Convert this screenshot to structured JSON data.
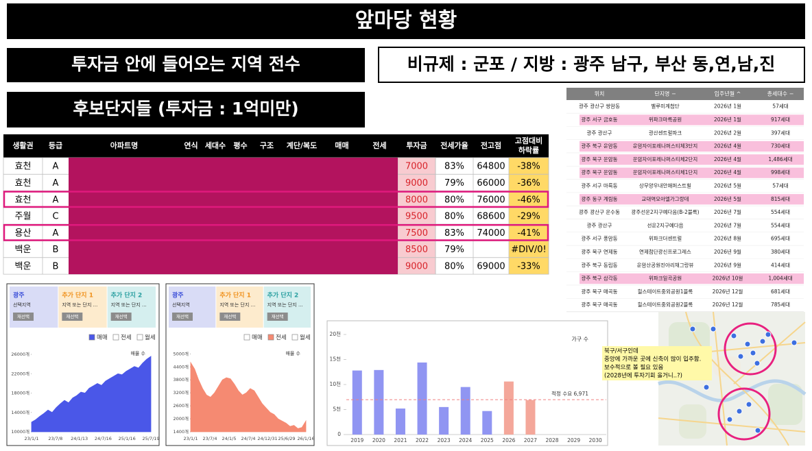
{
  "title": "앞마당 현황",
  "banner_left": "투자금 안에 들어오는 지역 전수",
  "banner_right": "비규제 : 군포 / 지방 : 광주 남구, 부산 동,연,남,진",
  "banner_candidates": "후보단지들 (투자금 : 1억미만)",
  "main_table": {
    "columns": [
      "생활권",
      "등급",
      "아파트명",
      "연식",
      "세대수",
      "평수",
      "구조",
      "계단/복도",
      "매매",
      "전세",
      "투자금",
      "전세가율",
      "전고점",
      [
        "고점대비",
        "하락률"
      ]
    ],
    "rows": [
      [
        "효천",
        "A",
        7000,
        "83%",
        64800,
        "-38%"
      ],
      [
        "효천",
        "A",
        9000,
        "79%",
        66000,
        "-36%"
      ],
      [
        "효천",
        "A",
        8000,
        "80%",
        76000,
        "-46%"
      ],
      [
        "주월",
        "C",
        9500,
        "80%",
        68600,
        "-29%"
      ],
      [
        "용산",
        "A",
        7500,
        "83%",
        74000,
        "-41%"
      ],
      [
        "백운",
        "B",
        8500,
        "79%",
        null,
        "#DIV/0!"
      ],
      [
        "백운",
        "B",
        9000,
        "80%",
        69000,
        "-33%"
      ]
    ],
    "outlined_rows": [
      2,
      4
    ]
  },
  "supply_table": {
    "columns": [
      "위치",
      "단지명 −",
      "입주년월 ^",
      "총세대수 −"
    ],
    "rows": [
      [
        "광주 광산구 쌍암동",
        "벨루미계첨단",
        "2026년 1월",
        "57세대"
      ],
      [
        "광주 서구 금호동",
        "위파크마륵공원",
        "2026년 1월",
        "917세대"
      ],
      [
        "광주 광산구",
        "광산센트럴파크",
        "2026년 2월",
        "397세대"
      ],
      [
        "광주 북구 운암동",
        "운암자이포레나퍼스티체3단지",
        "2026년 4월",
        "730세대"
      ],
      [
        "광주 북구 운암동",
        "운암자이포레나퍼스티체2단지",
        "2026년 4월",
        "1,486세대"
      ],
      [
        "광주 북구 운암동",
        "운암자이포레나퍼스티체1단지",
        "2026년 4월",
        "998세대"
      ],
      [
        "광주 서구 마륵동",
        "상무양우내안애퍼스트힐",
        "2026년 5월",
        "57세대"
      ],
      [
        "광주 동구 계림동",
        "교대역모아엘가그랑데",
        "2026년 5월",
        "815세대"
      ],
      [
        "광주 광산구 운수동",
        "광주선운2지구예다음(B-2블록)",
        "2026년 7월",
        "554세대"
      ],
      [
        "광주 광산구",
        "선운2지구예다음",
        "2026년 7월",
        "554세대"
      ],
      [
        "광주 서구 풍암동",
        "위파크더센트럴",
        "2026년 8월",
        "695세대"
      ],
      [
        "광주 북구 연제동",
        "연제첨단광신프로그레스",
        "2026년 9월",
        "380세대"
      ],
      [
        "광주 북구 동림동",
        "운암산공원진아리채그랑뷰",
        "2026년 9월",
        "414세대"
      ],
      [
        "광주 북구 삼각동",
        "위파크일곡공원",
        "2026년 10월",
        "1,004세대"
      ],
      [
        "광주 북구 매곡동",
        "힐스테이트중외공원1블록",
        "2026년 12월",
        "681세대"
      ],
      [
        "광주 북구 매곡동",
        "힐스테이트중외공원2블록",
        "2026년 12월",
        "785세대"
      ]
    ],
    "highlighted_rows": [
      1,
      3,
      4,
      5,
      7,
      13
    ]
  },
  "chart_data": [
    {
      "type": "area",
      "filters": [
        {
          "title": "광주",
          "subtitle": "선택지역",
          "button": "재선택",
          "color": "#3c4fd8",
          "background": "#d9dcf6"
        },
        {
          "title": "추가 단지 1",
          "subtitle": "지역 또는 단지 ...",
          "button": "재선택",
          "color": "#f0921e",
          "background": "#fdebcd"
        },
        {
          "title": "추가 단지 2",
          "subtitle": "지역 또는 단지 ...",
          "button": "재선택",
          "color": "#2a9fa0",
          "background": "#d5efef"
        }
      ],
      "legend": [
        "매매",
        "전세",
        "월세"
      ],
      "legend_checked": 0,
      "annotation": "매물 수",
      "x_labels": [
        "23/1/1",
        "23/7/8",
        "24/1/13",
        "24/7/16",
        "25/1/16",
        "25/7/19"
      ],
      "values": [
        12000,
        12500,
        13200,
        13800,
        14500,
        14000,
        15000,
        15800,
        16500,
        16000,
        17000,
        17500,
        18200,
        18000,
        19000,
        19500,
        20000,
        19600,
        20500,
        21000,
        21500,
        22000,
        21800,
        22500,
        23000,
        23500,
        23200,
        24200,
        25000,
        25600
      ],
      "ylim": [
        10000,
        27000
      ],
      "yticks": [
        {
          "value": 10000,
          "label": "10000개"
        },
        {
          "value": 14000,
          "label": "14000개"
        },
        {
          "value": 18000,
          "label": "18000개"
        },
        {
          "value": 22000,
          "label": "22000개"
        },
        {
          "value": 26000,
          "label": "26000개"
        }
      ],
      "color": "#4a57e8"
    },
    {
      "type": "area",
      "filters": [
        {
          "title": "광주",
          "subtitle": "선택지역",
          "button": "재선택",
          "color": "#3c4fd8",
          "background": "#d9dcf6"
        },
        {
          "title": "추가 단지 1",
          "subtitle": "지역 또는 단지 ...",
          "button": "재선택",
          "color": "#f0921e",
          "background": "#fdebcd"
        },
        {
          "title": "추가 단지 2",
          "subtitle": "지역 또는 단지 ...",
          "button": "재선택",
          "color": "#2a9fa0",
          "background": "#d5efef"
        }
      ],
      "legend": [
        "매매",
        "전세",
        "월세"
      ],
      "legend_checked": 1,
      "annotation": "매물 수",
      "x_labels": [
        "23/1/1",
        "23/7/4",
        "24/1/5",
        "24/7/4",
        "24/12/31",
        "25/6/29",
        "26/1/16"
      ],
      "values": [
        4600,
        4300,
        3800,
        3400,
        3100,
        3000,
        3200,
        3500,
        3800,
        3900,
        3850,
        3600,
        3300,
        3100,
        3200,
        3400,
        3300,
        3000,
        2700,
        2500,
        2300,
        2200,
        2000,
        1900,
        1800,
        1650,
        1700,
        1550,
        1600,
        1900
      ],
      "ylim": [
        1400,
        5200
      ],
      "yticks": [
        {
          "value": 1400,
          "label": "1400개"
        },
        {
          "value": 2000,
          "label": "2000개"
        },
        {
          "value": 2600,
          "label": "2600개"
        },
        {
          "value": 3200,
          "label": "3200개"
        },
        {
          "value": 3800,
          "label": "3800개"
        },
        {
          "value": 4400,
          "label": "4400개"
        },
        {
          "value": 5000,
          "label": "5000개"
        }
      ],
      "color": "#f58a72"
    },
    {
      "type": "bar",
      "categories": [
        "2019",
        "2020",
        "2021",
        "2022",
        "2023",
        "2024",
        "2025",
        "2026",
        "2027",
        "2028",
        "2029",
        "2030"
      ],
      "values": [
        12.8,
        12.9,
        5.2,
        14.4,
        5.5,
        9.5,
        4.7,
        10.6,
        6.9,
        null,
        null,
        null
      ],
      "colors": [
        "#9095f2",
        "#9095f2",
        "#9095f2",
        "#9095f2",
        "#9095f2",
        "#9095f2",
        "#9095f2",
        "#f4a79a",
        "#f4a79a",
        "#9095f2",
        "#9095f2",
        "#9095f2"
      ],
      "ylim": [
        0,
        20
      ],
      "yticks": [
        0,
        {
          "value": 5,
          "label": "5천"
        },
        {
          "value": 10,
          "label": "10천"
        },
        {
          "value": 15,
          "label": "15천"
        },
        {
          "value": 20,
          "label": "20천"
        }
      ],
      "legend": "가구 수",
      "reference": {
        "value": 6.971,
        "label": "적정 수요 6,971"
      }
    }
  ],
  "map_note": [
    "북구/서구인데",
    "중앙에 가까운 곳에 신축이 많이 입주함.",
    "보수적으로 볼 필요 있음",
    "(2028년에 투자기회 올거니..?)"
  ]
}
